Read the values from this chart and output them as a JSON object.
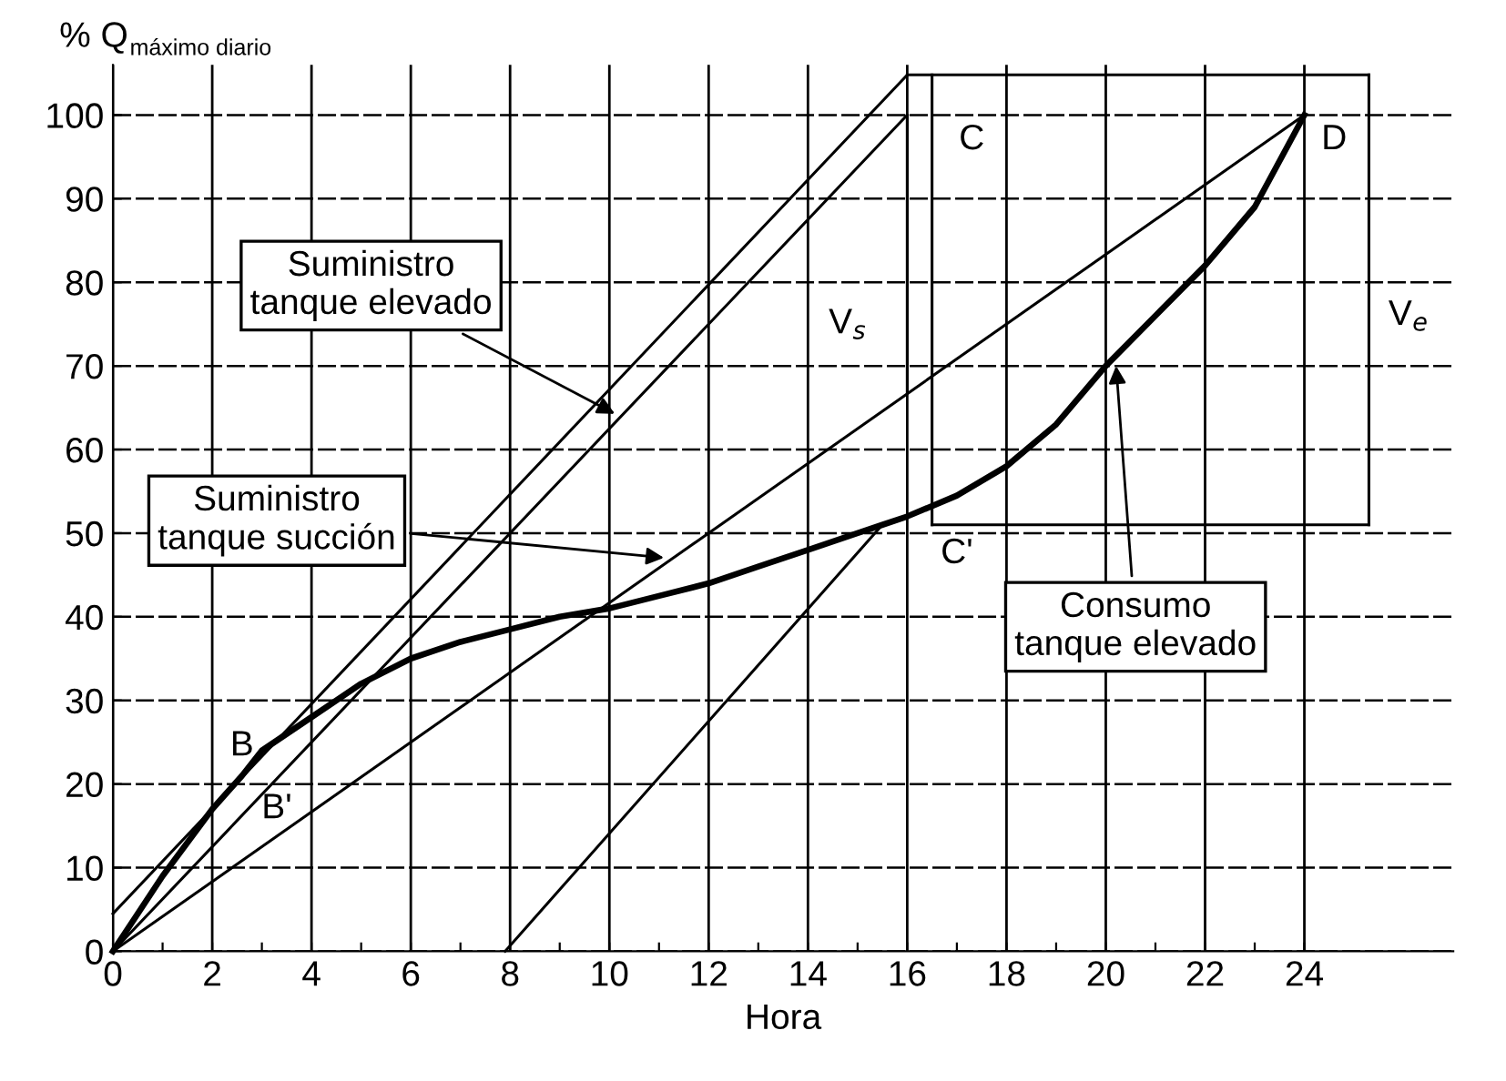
{
  "chart_data": {
    "type": "line",
    "xlabel": "Hora",
    "ylabel": "% Q$_{máximo diario}$",
    "xlim": [
      0,
      27
    ],
    "ylim": [
      0,
      106
    ],
    "xticks": [
      0,
      {
        "value": 1,
        "label": null
      },
      2,
      {
        "value": 3,
        "label": null
      },
      4,
      {
        "value": 5,
        "label": null
      },
      6,
      {
        "value": 7,
        "label": null
      },
      8,
      {
        "value": 9,
        "label": null
      },
      10,
      {
        "value": 11,
        "label": null
      },
      12,
      {
        "value": 13,
        "label": null
      },
      14,
      {
        "value": 15,
        "label": null
      },
      16,
      {
        "value": 17,
        "label": null
      },
      18,
      {
        "value": 19,
        "label": null
      },
      20,
      {
        "value": 21,
        "label": null
      },
      22,
      {
        "value": 23,
        "label": null
      },
      24
    ],
    "yticks": [
      0,
      10,
      20,
      30,
      40,
      50,
      60,
      70,
      80,
      90,
      100
    ],
    "grid": true,
    "marker": "none",
    "line_style": "solid",
    "series": [
      {
        "color": "#000000",
        "x": [
          0,
          1,
          2,
          2.6,
          3,
          4,
          5,
          6,
          7,
          8,
          9,
          10,
          11,
          12,
          13,
          14,
          15,
          15.5,
          16,
          17,
          18,
          19,
          20,
          21,
          22,
          23,
          24
        ],
        "values": [
          0,
          9,
          17,
          21,
          24,
          28,
          32,
          35,
          37,
          38.5,
          40,
          41,
          42.5,
          44,
          46,
          48,
          50,
          51,
          52,
          54.5,
          58,
          63,
          70,
          76,
          82,
          89,
          100
        ]
      },
      {
        "color": "#000000",
        "x": [
          0,
          24
        ],
        "values": [
          0,
          100
        ]
      },
      {
        "color": "#000000",
        "x": [
          0,
          16
        ],
        "values": [
          0,
          100
        ]
      },
      {
        "color": "#000000",
        "x": [
          0,
          16
        ],
        "values": [
          4.5,
          104.8
        ]
      },
      {
        "color": "#000000",
        "x": [
          7.9,
          15.5
        ],
        "values": [
          0,
          51
        ]
      },
      {
        "color": "#000000",
        "x": [
          16,
          25.3
        ],
        "values": [
          104.8,
          104.8
        ]
      },
      {
        "color": "#000000",
        "x": [
          16.5,
          25.3
        ],
        "values": [
          51,
          51
        ]
      },
      {
        "color": "#000000",
        "x": [
          16,
          16
        ],
        "values": [
          100,
          66.7
        ]
      },
      {
        "color": "#000000",
        "x": [
          16.5,
          16.5
        ],
        "values": [
          104.8,
          51
        ]
      },
      {
        "color": "#000000",
        "x": [
          25.3,
          25.3
        ],
        "values": [
          104.8,
          51
        ]
      }
    ],
    "annotations": [
      {
        "text": "Suministro\ntanque elevado",
        "x": 10.2,
        "y": 64
      },
      {
        "text": "Suministro\ntanque succión",
        "x": 11.2,
        "y": 47
      },
      {
        "text": "Consumo\ntanque elevado",
        "x": 20.2,
        "y": 70.6
      },
      "B",
      "B'",
      "C",
      "C'",
      "D",
      "V$_{s}$",
      "V$_{e}$"
    ]
  }
}
